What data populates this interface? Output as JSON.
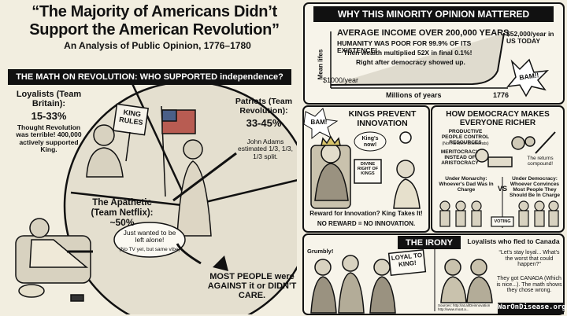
{
  "header": {
    "title": "“The Majority of Americans Didn’t Support the American Revolution”",
    "subtitle": "An Analysis of Public Opinion, 1776–1780"
  },
  "math": {
    "heading": "THE MATH ON REVOLUTION: WHO SUPPORTED independence?",
    "loyalists": {
      "name": "Loyalists (Team Britain):",
      "share": "15-33%",
      "note": "Thought Revolution was terrible! 400,000 actively supported King.",
      "sign": "KING RULES"
    },
    "patriots": {
      "name": "Patriots (Team Revolution):",
      "share": "33-45%",
      "note": "John Adams estimated 1/3, 1/3, 1/3 split."
    },
    "apathetic": {
      "name": "The Apathetic (Team Netflix):",
      "share": "~50%",
      "bubble": "Just wanted to be left alone!",
      "aside": "(No TV yet, but same vibe)"
    },
    "conclusion": "MOST PEOPLE were AGAINST it or DIDN'T CARE."
  },
  "minority": {
    "heading": "WHY THIS MINORITY OPINION MATTERED",
    "chart_title": "AVERAGE INCOME OVER 200,000 YEARS",
    "lines": [
      "HUMANITY WAS POOR FOR 99.9% OF ITS EXISTENCE!",
      "Then wealth multiplied 52X in final 0.1%!",
      "Right after democracy showed up."
    ],
    "y_label": "Mean lifes",
    "baseline": "$1000/year",
    "x_label": "Millions of years",
    "marker": "1776",
    "today": "$52,000/year in US TODAY",
    "burst": "BAM!!"
  },
  "kings": {
    "burst": "BAM!",
    "heading": "KINGS PREVENT INNOVATION",
    "speech": "King's now!",
    "book": "DIVINE RIGHT OF KINGS",
    "caption": "Reward for Innovation? King Takes It!",
    "conclusion": "NO REWARD = NO INNOVATION."
  },
  "democracy": {
    "heading": "HOW DEMOCRACY MAKES EVERYONE RICHER",
    "point1": "PRODUCTIVE PEOPLE CONTROL RESOURCES",
    "point1_note": "(Not random aristocrats)",
    "point2": "MERITOCRACY INSTEAD OF ARISTOCRACY",
    "compound": "The returns compound!",
    "monarchy": "Under Monarchy: Whoever's Dad Was In Charge",
    "vs": "VS",
    "democracy": "Under Democracy: Whoever Convinces Most People They Should Be In Charge",
    "ballot": "VOTING"
  },
  "irony": {
    "heading": "THE IRONY",
    "grumble": "Grumbly!",
    "sign": "LOYAL TO KING!",
    "caption": "Loyalists who fled to Canada",
    "quote": "“Let's stay loyal... What's the worst that could happen?”",
    "conclusion": "They got CANADA (Which is nice...). The math shows they chose wrong.",
    "sources": "Sources: http://at.al/Deinnovation http://www.moat.a...",
    "brand": "WarOnDisease.org"
  }
}
